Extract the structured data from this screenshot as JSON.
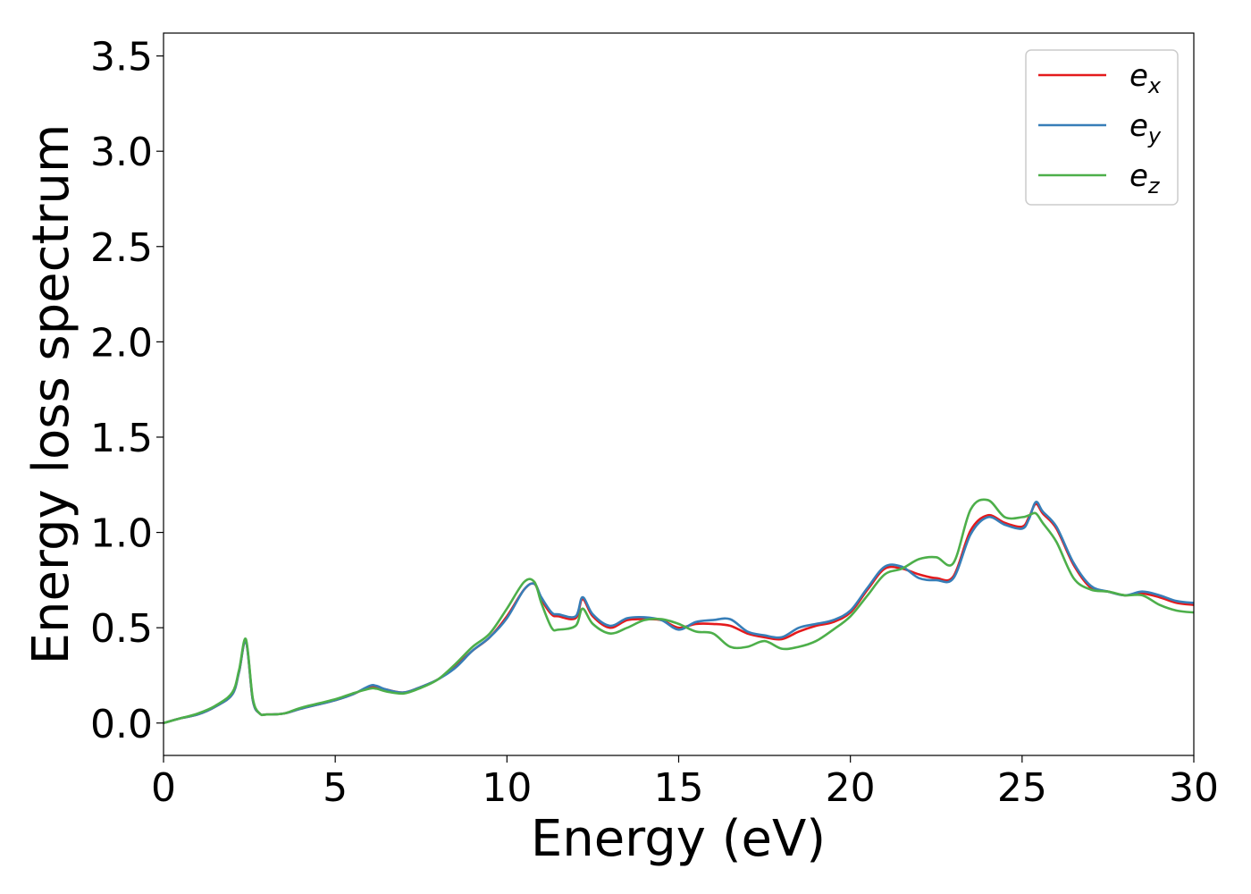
{
  "chart_data": {
    "type": "line",
    "title": "",
    "xlabel": "Energy (eV)",
    "ylabel": "Energy loss spectrum",
    "xlim": [
      0,
      30
    ],
    "ylim": [
      -0.17,
      3.62
    ],
    "xticks": [
      0,
      5,
      10,
      15,
      20,
      25,
      30
    ],
    "xtick_labels": [
      "0",
      "5",
      "10",
      "15",
      "20",
      "25",
      "30"
    ],
    "yticks": [
      0.0,
      0.5,
      1.0,
      1.5,
      2.0,
      2.5,
      3.0,
      3.5
    ],
    "ytick_labels": [
      "0.0",
      "0.5",
      "1.0",
      "1.5",
      "2.0",
      "2.5",
      "3.0",
      "3.5"
    ],
    "grid": false,
    "legend": {
      "position": "top-right"
    },
    "series": [
      {
        "name": "e_x",
        "label_base": "e",
        "label_sub": "x",
        "color": "#e41a1c",
        "x": [
          0,
          0.5,
          1.0,
          1.5,
          2.0,
          2.2,
          2.4,
          2.6,
          2.8,
          3.0,
          3.5,
          4.0,
          5.0,
          5.5,
          6.0,
          6.2,
          6.5,
          7.0,
          7.5,
          8.0,
          8.5,
          9.0,
          9.5,
          10.0,
          10.5,
          10.8,
          11.0,
          11.3,
          11.5,
          12.0,
          12.2,
          12.5,
          13.0,
          13.5,
          14.0,
          14.5,
          15.0,
          15.5,
          16.0,
          16.5,
          17.0,
          17.5,
          18.0,
          18.5,
          19.0,
          19.5,
          20.0,
          20.5,
          21.0,
          21.5,
          22.0,
          22.5,
          23.0,
          23.5,
          24.0,
          24.5,
          25.0,
          25.2,
          25.4,
          25.6,
          26.0,
          26.5,
          27.0,
          27.5,
          28.0,
          28.5,
          29.0,
          29.5,
          30.0
        ],
        "y": [
          0.0,
          0.025,
          0.045,
          0.085,
          0.15,
          0.27,
          0.43,
          0.12,
          0.05,
          0.045,
          0.05,
          0.075,
          0.12,
          0.15,
          0.19,
          0.19,
          0.175,
          0.16,
          0.19,
          0.23,
          0.3,
          0.38,
          0.45,
          0.56,
          0.7,
          0.73,
          0.65,
          0.57,
          0.56,
          0.55,
          0.65,
          0.56,
          0.5,
          0.54,
          0.545,
          0.54,
          0.5,
          0.52,
          0.52,
          0.51,
          0.47,
          0.45,
          0.44,
          0.48,
          0.51,
          0.53,
          0.58,
          0.7,
          0.81,
          0.81,
          0.78,
          0.76,
          0.77,
          1.01,
          1.09,
          1.05,
          1.03,
          1.08,
          1.15,
          1.1,
          1.02,
          0.83,
          0.71,
          0.69,
          0.67,
          0.68,
          0.66,
          0.63,
          0.62
        ]
      },
      {
        "name": "e_y",
        "label_base": "e",
        "label_sub": "y",
        "color": "#377eb8",
        "x": [
          0,
          0.5,
          1.0,
          1.5,
          2.0,
          2.2,
          2.4,
          2.6,
          2.8,
          3.0,
          3.5,
          4.0,
          5.0,
          5.5,
          6.0,
          6.2,
          6.5,
          7.0,
          7.5,
          8.0,
          8.5,
          9.0,
          9.5,
          10.0,
          10.5,
          10.8,
          11.0,
          11.3,
          11.5,
          12.0,
          12.2,
          12.5,
          13.0,
          13.5,
          14.0,
          14.5,
          15.0,
          15.5,
          16.0,
          16.5,
          17.0,
          17.5,
          18.0,
          18.5,
          19.0,
          19.5,
          20.0,
          20.5,
          21.0,
          21.5,
          22.0,
          22.5,
          23.0,
          23.5,
          24.0,
          24.5,
          25.0,
          25.2,
          25.4,
          25.6,
          26.0,
          26.5,
          27.0,
          27.5,
          28.0,
          28.5,
          29.0,
          29.5,
          30.0
        ],
        "y": [
          0.0,
          0.025,
          0.045,
          0.085,
          0.15,
          0.27,
          0.43,
          0.12,
          0.05,
          0.045,
          0.05,
          0.075,
          0.12,
          0.15,
          0.195,
          0.195,
          0.175,
          0.16,
          0.19,
          0.23,
          0.29,
          0.38,
          0.45,
          0.55,
          0.7,
          0.73,
          0.66,
          0.58,
          0.57,
          0.56,
          0.66,
          0.57,
          0.51,
          0.55,
          0.555,
          0.54,
          0.49,
          0.53,
          0.54,
          0.545,
          0.48,
          0.46,
          0.45,
          0.5,
          0.52,
          0.54,
          0.59,
          0.71,
          0.82,
          0.82,
          0.76,
          0.75,
          0.76,
          0.99,
          1.08,
          1.04,
          1.02,
          1.07,
          1.16,
          1.11,
          1.03,
          0.84,
          0.72,
          0.69,
          0.67,
          0.69,
          0.67,
          0.64,
          0.63
        ]
      },
      {
        "name": "e_z",
        "label_base": "e",
        "label_sub": "z",
        "color": "#4daf4a",
        "x": [
          0,
          0.5,
          1.0,
          1.5,
          2.0,
          2.2,
          2.4,
          2.6,
          2.8,
          3.0,
          3.5,
          4.0,
          5.0,
          5.5,
          6.0,
          6.2,
          6.5,
          7.0,
          7.5,
          8.0,
          8.5,
          9.0,
          9.5,
          10.0,
          10.5,
          10.8,
          11.0,
          11.3,
          11.5,
          12.0,
          12.2,
          12.5,
          13.0,
          13.5,
          14.0,
          14.5,
          15.0,
          15.5,
          16.0,
          16.5,
          17.0,
          17.5,
          18.0,
          18.5,
          19.0,
          19.5,
          20.0,
          20.5,
          21.0,
          21.5,
          22.0,
          22.5,
          23.0,
          23.5,
          24.0,
          24.5,
          25.0,
          25.2,
          25.4,
          25.6,
          26.0,
          26.5,
          27.0,
          27.5,
          28.0,
          28.5,
          29.0,
          29.5,
          30.0
        ],
        "y": [
          0.0,
          0.025,
          0.05,
          0.09,
          0.16,
          0.28,
          0.44,
          0.13,
          0.05,
          0.045,
          0.05,
          0.08,
          0.125,
          0.155,
          0.18,
          0.18,
          0.165,
          0.155,
          0.185,
          0.23,
          0.31,
          0.4,
          0.47,
          0.6,
          0.74,
          0.74,
          0.63,
          0.5,
          0.49,
          0.51,
          0.6,
          0.52,
          0.47,
          0.5,
          0.54,
          0.545,
          0.52,
          0.48,
          0.47,
          0.4,
          0.4,
          0.43,
          0.39,
          0.4,
          0.43,
          0.49,
          0.56,
          0.67,
          0.78,
          0.81,
          0.86,
          0.87,
          0.84,
          1.12,
          1.17,
          1.08,
          1.08,
          1.09,
          1.1,
          1.05,
          0.95,
          0.76,
          0.7,
          0.69,
          0.67,
          0.67,
          0.62,
          0.59,
          0.58
        ]
      }
    ]
  }
}
